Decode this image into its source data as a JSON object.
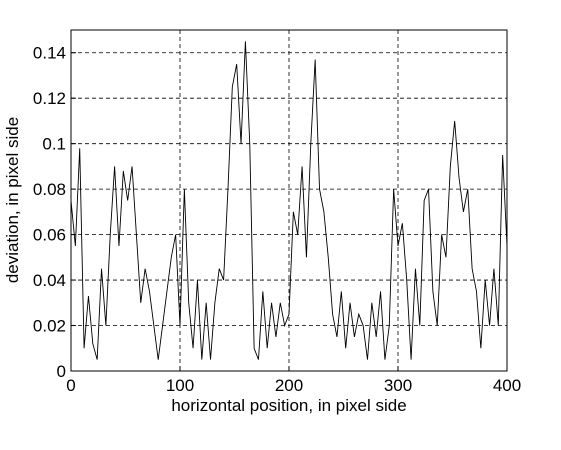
{
  "chart_data": {
    "type": "line",
    "xlabel": "horizontal position, in pixel side",
    "ylabel": "deviation, in pixel side",
    "x": [
      0,
      4,
      8,
      12,
      16,
      20,
      24,
      28,
      32,
      36,
      40,
      44,
      48,
      52,
      56,
      60,
      64,
      68,
      72,
      76,
      80,
      84,
      88,
      92,
      96,
      100,
      104,
      108,
      112,
      116,
      120,
      124,
      128,
      132,
      136,
      140,
      144,
      148,
      152,
      156,
      160,
      164,
      168,
      172,
      176,
      180,
      184,
      188,
      192,
      196,
      200,
      204,
      208,
      212,
      216,
      220,
      224,
      228,
      232,
      236,
      240,
      244,
      248,
      252,
      256,
      260,
      264,
      268,
      272,
      276,
      280,
      284,
      288,
      292,
      296,
      300,
      304,
      308,
      312,
      316,
      320,
      324,
      328,
      332,
      336,
      340,
      344,
      348,
      352,
      356,
      360,
      364,
      368,
      372,
      376,
      380,
      384,
      388,
      392,
      396,
      400
    ],
    "series": [
      {
        "color": "#000000",
        "values": [
          0.075,
          0.055,
          0.098,
          0.01,
          0.033,
          0.012,
          0.005,
          0.045,
          0.02,
          0.06,
          0.09,
          0.055,
          0.088,
          0.075,
          0.09,
          0.06,
          0.03,
          0.045,
          0.035,
          0.02,
          0.005,
          0.02,
          0.035,
          0.05,
          0.06,
          0.02,
          0.08,
          0.03,
          0.01,
          0.04,
          0.005,
          0.03,
          0.005,
          0.03,
          0.045,
          0.04,
          0.08,
          0.125,
          0.135,
          0.1,
          0.145,
          0.1,
          0.01,
          0.005,
          0.035,
          0.01,
          0.03,
          0.015,
          0.03,
          0.02,
          0.025,
          0.07,
          0.06,
          0.09,
          0.05,
          0.1,
          0.137,
          0.08,
          0.07,
          0.05,
          0.025,
          0.015,
          0.035,
          0.01,
          0.03,
          0.015,
          0.025,
          0.02,
          0.005,
          0.03,
          0.015,
          0.035,
          0.005,
          0.02,
          0.08,
          0.055,
          0.065,
          0.04,
          0.005,
          0.045,
          0.02,
          0.075,
          0.08,
          0.035,
          0.02,
          0.06,
          0.05,
          0.09,
          0.11,
          0.085,
          0.07,
          0.08,
          0.045,
          0.035,
          0.01,
          0.04,
          0.02,
          0.045,
          0.02,
          0.095,
          0.055
        ]
      }
    ],
    "xlim": [
      0,
      400
    ],
    "xticks": [
      0,
      100,
      200,
      300,
      400
    ],
    "ylim": [
      0,
      0.15
    ],
    "yticks": [
      0,
      0.02,
      0.04,
      0.06,
      0.08,
      0.1,
      0.12,
      0.14
    ],
    "grid": true
  }
}
